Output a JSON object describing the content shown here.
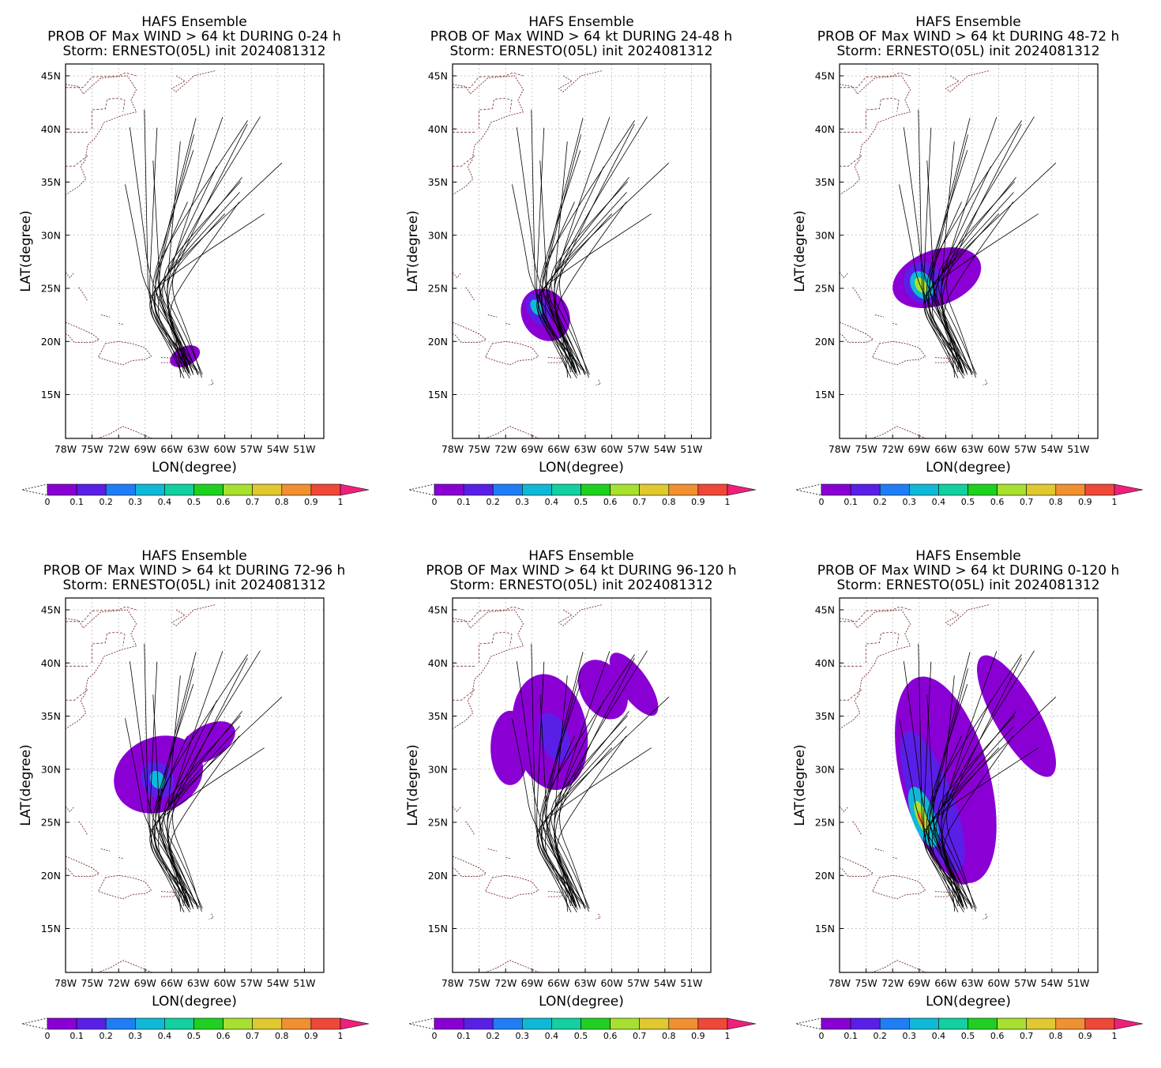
{
  "figure": {
    "panels": [
      {
        "title1": "HAFS Ensemble",
        "title2": "PROB OF Max WIND > 64 kt DURING  0-24 h",
        "title3": "Storm: ERNESTO(05L) init 2024081312"
      },
      {
        "title1": "HAFS Ensemble",
        "title2": "PROB OF Max WIND > 64 kt DURING 24-48 h",
        "title3": "Storm: ERNESTO(05L) init 2024081312"
      },
      {
        "title1": "HAFS Ensemble",
        "title2": "PROB OF Max WIND > 64 kt DURING 48-72 h",
        "title3": "Storm: ERNESTO(05L) init 2024081312"
      },
      {
        "title1": "HAFS Ensemble",
        "title2": "PROB OF Max WIND > 64 kt DURING 72-96 h",
        "title3": "Storm: ERNESTO(05L) init 2024081312"
      },
      {
        "title1": "HAFS Ensemble",
        "title2": "PROB OF Max WIND > 64 kt DURING 96-120 h",
        "title3": "Storm: ERNESTO(05L) init 2024081312"
      },
      {
        "title1": "HAFS Ensemble",
        "title2": "PROB OF Max WIND > 64 kt DURING 0-120 h",
        "title3": "Storm: ERNESTO(05L) init 2024081312"
      }
    ],
    "xlabel": "LON(degree)",
    "ylabel": "LAT(degree)",
    "lon_ticks": [
      "78W",
      "75W",
      "72W",
      "69W",
      "66W",
      "63W",
      "60W",
      "57W",
      "54W",
      "51W"
    ],
    "lat_ticks": [
      "45N",
      "40N",
      "35N",
      "30N",
      "25N",
      "20N",
      "15N"
    ],
    "colorbar": {
      "labels": [
        "0",
        "0.1",
        "0.2",
        "0.3",
        "0.4",
        "0.5",
        "0.6",
        "0.7",
        "0.8",
        "0.9",
        "1"
      ],
      "colors": [
        "#8a00d4",
        "#5a1fe6",
        "#1f7ef5",
        "#10b8d8",
        "#12d0a0",
        "#20d020",
        "#a8e030",
        "#e0c830",
        "#f09030",
        "#f04838"
      ],
      "over_color": "#f0207a"
    }
  }
}
